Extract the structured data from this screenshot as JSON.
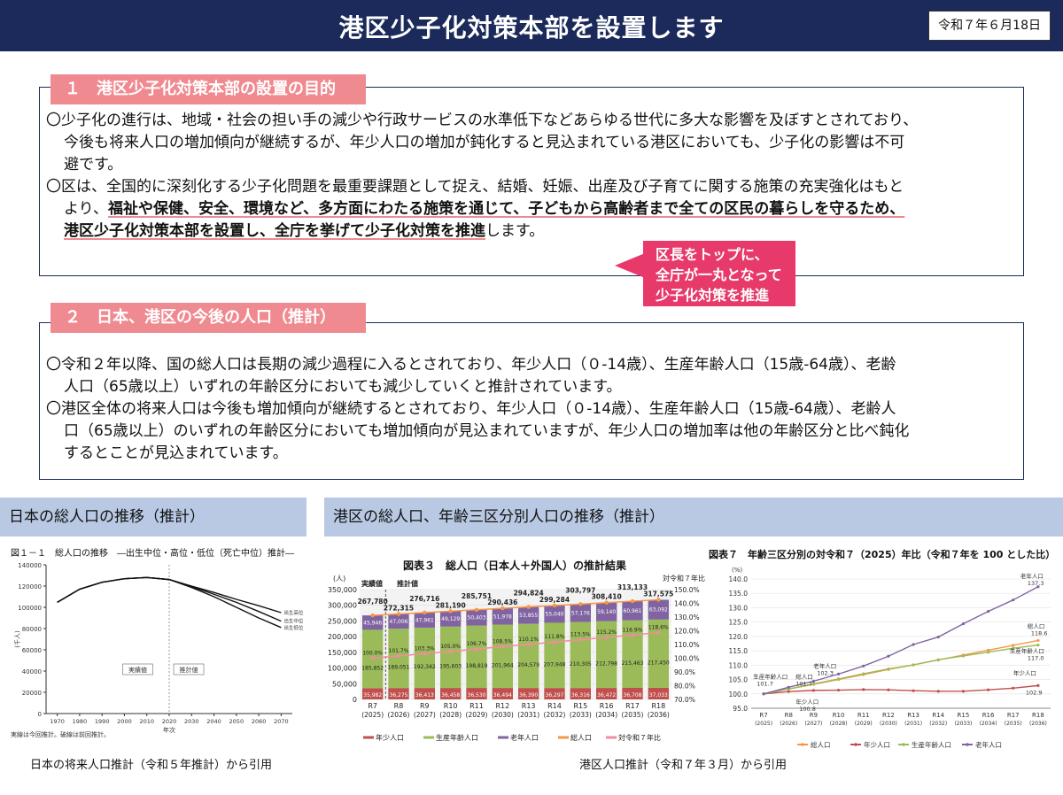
{
  "header": {
    "title": "港区少子化対策本部を設置します",
    "date": "令和７年６月18日"
  },
  "section1": {
    "title": "１　港区少子化対策本部の設置の目的",
    "p1_l1": "〇少子化の進行は、地域・社会の担い手の減少や行政サービスの水準低下などあらゆる世代に多大な影響を及ぼすとされており、",
    "p1_l2": "今後も将来人口の増加傾向が継続するが、年少人口の増加が鈍化すると見込まれている港区においても、少子化の影響は不可",
    "p1_l3": "避です。",
    "p2_l1": "〇区は、全国的に深刻化する少子化問題を最重要課題として捉え、結婚、妊娠、出産及び子育てに関する施策の充実強化はもと",
    "p2_l2a": "より、",
    "p2_l2b": "福祉や保健、安全、環境など、多方面にわたる施策を通じて、子どもから高齢者まで全ての区民の暮らしを守るため、",
    "p2_l3b": "港区少子化対策本部を設置し、全庁を挙げて少子化対策を推進",
    "p2_l3c": "します。"
  },
  "callout": {
    "l1": "区長をトップに、",
    "l2": "全庁が一丸となって",
    "l3": "少子化対策を推進"
  },
  "section2": {
    "title": "２　日本、港区の今後の人口（推計）",
    "p1_l1": "〇令和２年以降、国の総人口は長期の減少過程に入るとされており、年少人口（０-14歳）、生産年齢人口（15歳-64歳）、老齢",
    "p1_l2": "人口（65歳以上）いずれの年齢区分においても減少していくと推計されています。",
    "p2_l1": "〇港区全体の将来人口は今後も増加傾向が継続するとされており、年少人口（０-14歳）、生産年齢人口（15歳-64歳）、老齢人",
    "p2_l2": "口（65歳以上）のいずれの年齢区分においても増加傾向が見込まれていますが、年少人口の増加率は他の年齢区分と比べ鈍化",
    "p2_l3": "するとことが見込まれています。"
  },
  "panel_left": {
    "title": "日本の総人口の推移（推計）",
    "source": "日本の将来人口推計（令和５年推計）から引用"
  },
  "panel_right": {
    "title": "港区の総人口、年齢三区分別人口の推移（推計）",
    "source": "港区人口推計（令和７年３月）から引用"
  },
  "fig1": {
    "title": "図１－１　総人口の推移　―出生中位・高位・低位（死亡中位）推計―",
    "ylabel": "(千人)",
    "xlabel": "年次",
    "yticks": [
      0,
      20000,
      40000,
      60000,
      80000,
      100000,
      120000,
      140000
    ],
    "xticks": [
      1970,
      1980,
      1990,
      2000,
      2010,
      2020,
      2030,
      2040,
      2050,
      2060,
      2070
    ],
    "label_actual": "実績値",
    "label_projected": "推計値",
    "legend": [
      "出生高位",
      "出生中位",
      "出生低位"
    ],
    "note1": "実線は今回推計。破線は前回推計。"
  },
  "fig3": {
    "title": "図表３　総人口（日本人＋外国人）の推計結果",
    "yunit": "(人)",
    "y2label": "対令和７年比",
    "actual_label": "実績値",
    "projected_label": "推計値",
    "totals": [
      "267,780",
      "272,315",
      "276,716",
      "281,190",
      "285,751",
      "290,436",
      "294,824",
      "299,284",
      "303,797",
      "308,410",
      "313,133",
      "317,575"
    ],
    "young": [
      "35,982",
      "36,275",
      "36,413",
      "36,458",
      "36,530",
      "36,494",
      "36,390",
      "36,297",
      "36,316",
      "36,472",
      "36,708",
      "37,033"
    ],
    "working": [
      "185,852",
      "189,051",
      "192,342",
      "195,603",
      "198,819",
      "201,964",
      "204,579",
      "207,948",
      "210,305",
      "212,798",
      "215,463",
      "217,450"
    ],
    "old": [
      "45,946",
      "47,006",
      "47,961",
      "49,129",
      "50,403",
      "51,978",
      "53,855",
      "55,040",
      "57,176",
      "59,140",
      "60,961",
      "63,092"
    ],
    "ratio": [
      "100.0%",
      "101.7%",
      "103.3%",
      "105.0%",
      "106.7%",
      "108.5%",
      "110.1%",
      "111.8%",
      "113.5%",
      "115.2%",
      "116.9%",
      "118.6%"
    ],
    "xlabels": [
      "R7",
      "R8",
      "R9",
      "R10",
      "R11",
      "R12",
      "R13",
      "R14",
      "R15",
      "R16",
      "R17",
      "R18"
    ],
    "xyears": [
      "(2025)",
      "(2026)",
      "(2027)",
      "(2028)",
      "(2029)",
      "(2030)",
      "(2031)",
      "(2032)",
      "(2033)",
      "(2034)",
      "(2035)",
      "(2036)"
    ],
    "yticks": [
      "0",
      "50,000",
      "100,000",
      "150,000",
      "200,000",
      "250,000",
      "300,000",
      "350,000"
    ],
    "y2ticks": [
      "70.0%",
      "80.0%",
      "90.0%",
      "100.0%",
      "110.0%",
      "120.0%",
      "130.0%",
      "140.0%",
      "150.0%"
    ],
    "legend": [
      "年少人口",
      "生産年齢人口",
      "老年人口",
      "総人口",
      "対令和７年比"
    ],
    "colors": {
      "young": "#c0504d",
      "working": "#9bbb59",
      "old": "#8064a2",
      "total": "#f79646",
      "ratio": "#f28ca0"
    }
  },
  "fig7": {
    "title": "図表７　年齢三区分別の対令和７（2025）年比（令和７年を 100 とした比）",
    "yunit": "(%)",
    "yticks": [
      "95.0",
      "100.0",
      "105.0",
      "110.0",
      "115.0",
      "120.0",
      "125.0",
      "130.0",
      "135.0",
      "140.0"
    ],
    "xlabels": [
      "R7",
      "R8",
      "R9",
      "R10",
      "R11",
      "R12",
      "R13",
      "R14",
      "R15",
      "R16",
      "R17",
      "R18"
    ],
    "xyears": [
      "(2025)",
      "(2026)",
      "(2027)",
      "(2028)",
      "(2029)",
      "(2030)",
      "(2031)",
      "(2032)",
      "(2033)",
      "(2034)",
      "(2035)",
      "(2036)"
    ],
    "legend": [
      "総人口",
      "年少人口",
      "生産年齢人口",
      "老年人口"
    ],
    "ann": {
      "old_end": "老年人口",
      "old_end_v": "137.3",
      "total_end": "総人口",
      "total_end_v": "118.6",
      "work_end": "生産年齢人口",
      "work_end_v": "117.0",
      "young_end": "年少人口",
      "young_end_v": "102.9",
      "old_r8": "老年人口",
      "old_r8_v": "102.3",
      "work_r8": "生産年齢人口",
      "work_r8_v": "101.7",
      "total_r8": "総人口",
      "total_r8_v": "101.7",
      "young_r8": "年少人口",
      "young_r8_v": "100.8"
    },
    "colors": {
      "total": "#f79646",
      "young": "#c0504d",
      "working": "#9bbb59",
      "old": "#8064a2"
    }
  },
  "chart_data": [
    {
      "type": "line",
      "title": "図１－１　総人口の推移　―出生中位・高位・低位（死亡中位）推計―",
      "xlabel": "年次",
      "ylabel": "(千人)",
      "xlim": [
        1965,
        2075
      ],
      "ylim": [
        0,
        140000
      ],
      "x": [
        1970,
        1980,
        1990,
        2000,
        2010,
        2020,
        2030,
        2040,
        2050,
        2060,
        2070
      ],
      "series": [
        {
          "name": "出生高位",
          "values": [
            104665,
            117060,
            123611,
            126926,
            128057,
            126146,
            120000,
            114000,
            107500,
            101500,
            95000
          ]
        },
        {
          "name": "出生中位",
          "values": [
            104665,
            117060,
            123611,
            126926,
            128057,
            126146,
            119500,
            112300,
            104700,
            96100,
            87000
          ]
        },
        {
          "name": "出生低位",
          "values": [
            104665,
            117060,
            123611,
            126926,
            128057,
            126146,
            118700,
            110000,
            100000,
            90000,
            81000
          ]
        }
      ]
    },
    {
      "type": "bar",
      "title": "図表３　総人口（日本人＋外国人）の推計結果",
      "categories": [
        "R7",
        "R8",
        "R9",
        "R10",
        "R11",
        "R12",
        "R13",
        "R14",
        "R15",
        "R16",
        "R17",
        "R18"
      ],
      "ylim": [
        0,
        350000
      ],
      "series": [
        {
          "name": "年少人口",
          "values": [
            35982,
            36275,
            36413,
            36458,
            36530,
            36494,
            36390,
            36297,
            36316,
            36472,
            36708,
            37033
          ]
        },
        {
          "name": "生産年齢人口",
          "values": [
            185852,
            189051,
            192342,
            195603,
            198819,
            201964,
            204579,
            207948,
            210305,
            212798,
            215463,
            217450
          ]
        },
        {
          "name": "老年人口",
          "values": [
            45946,
            47006,
            47961,
            49129,
            50403,
            51978,
            53855,
            55040,
            57176,
            59140,
            60961,
            63092
          ]
        },
        {
          "name": "総人口",
          "values": [
            267780,
            272315,
            276716,
            281190,
            285751,
            290436,
            294824,
            299284,
            303797,
            308410,
            313133,
            317575
          ]
        },
        {
          "name": "対令和７年比",
          "values": [
            100.0,
            101.7,
            103.3,
            105.0,
            106.7,
            108.5,
            110.1,
            111.8,
            113.5,
            115.2,
            116.9,
            118.6
          ]
        }
      ]
    },
    {
      "type": "line",
      "title": "図表７　年齢三区分別の対令和７（2025）年比（令和７年を 100 とした比）",
      "categories": [
        "R7",
        "R8",
        "R9",
        "R10",
        "R11",
        "R12",
        "R13",
        "R14",
        "R15",
        "R16",
        "R17",
        "R18"
      ],
      "ylim": [
        95,
        140
      ],
      "series": [
        {
          "name": "総人口",
          "values": [
            100.0,
            101.7,
            103.3,
            105.0,
            106.7,
            108.5,
            110.1,
            111.8,
            113.5,
            115.2,
            116.9,
            118.6
          ]
        },
        {
          "name": "年少人口",
          "values": [
            100.0,
            100.8,
            101.2,
            101.3,
            101.5,
            101.4,
            101.1,
            100.9,
            100.9,
            101.4,
            102.0,
            102.9
          ]
        },
        {
          "name": "生産年齢人口",
          "values": [
            100.0,
            101.7,
            103.5,
            105.2,
            107.0,
            108.7,
            110.1,
            111.9,
            113.2,
            114.5,
            115.9,
            117.0
          ]
        },
        {
          "name": "老年人口",
          "values": [
            100.0,
            102.3,
            104.4,
            106.9,
            109.7,
            113.1,
            117.2,
            119.8,
            124.4,
            128.7,
            132.7,
            137.3
          ]
        }
      ]
    }
  ]
}
